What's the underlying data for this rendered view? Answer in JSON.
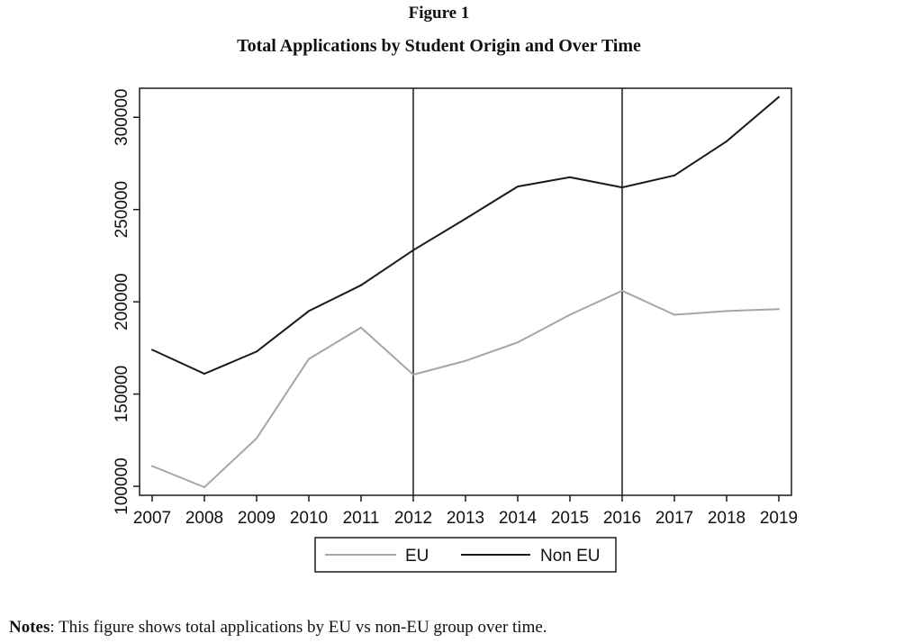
{
  "figure": {
    "label": "Figure 1",
    "title": "Total Applications by Student Origin and Over Time"
  },
  "notes": {
    "label": "Notes",
    "text": ": This figure shows total applications by EU vs non-EU group over time."
  },
  "chart_data": {
    "type": "line",
    "title": "Total Applications by Student Origin and Over Time",
    "xlabel": "",
    "ylabel": "",
    "x": [
      2007,
      2008,
      2009,
      2010,
      2011,
      2012,
      2013,
      2014,
      2015,
      2016,
      2017,
      2018,
      2019
    ],
    "xlim": [
      2007,
      2019
    ],
    "ylim": [
      100000,
      310000
    ],
    "yticks": [
      100000,
      150000,
      200000,
      250000,
      300000
    ],
    "vlines": [
      2012,
      2016
    ],
    "grid": false,
    "legend_position": "bottom",
    "series": [
      {
        "name": "EU",
        "color": "#a6a6a6",
        "values": [
          111000,
          99500,
          126000,
          169000,
          186000,
          160500,
          168000,
          178000,
          193000,
          206000,
          193000,
          195000,
          196000
        ]
      },
      {
        "name": "Non EU",
        "color": "#1a1a1a",
        "values": [
          174000,
          161000,
          173000,
          195000,
          209000,
          228000,
          245000,
          262500,
          267500,
          262000,
          268500,
          287000,
          311000
        ]
      }
    ]
  }
}
